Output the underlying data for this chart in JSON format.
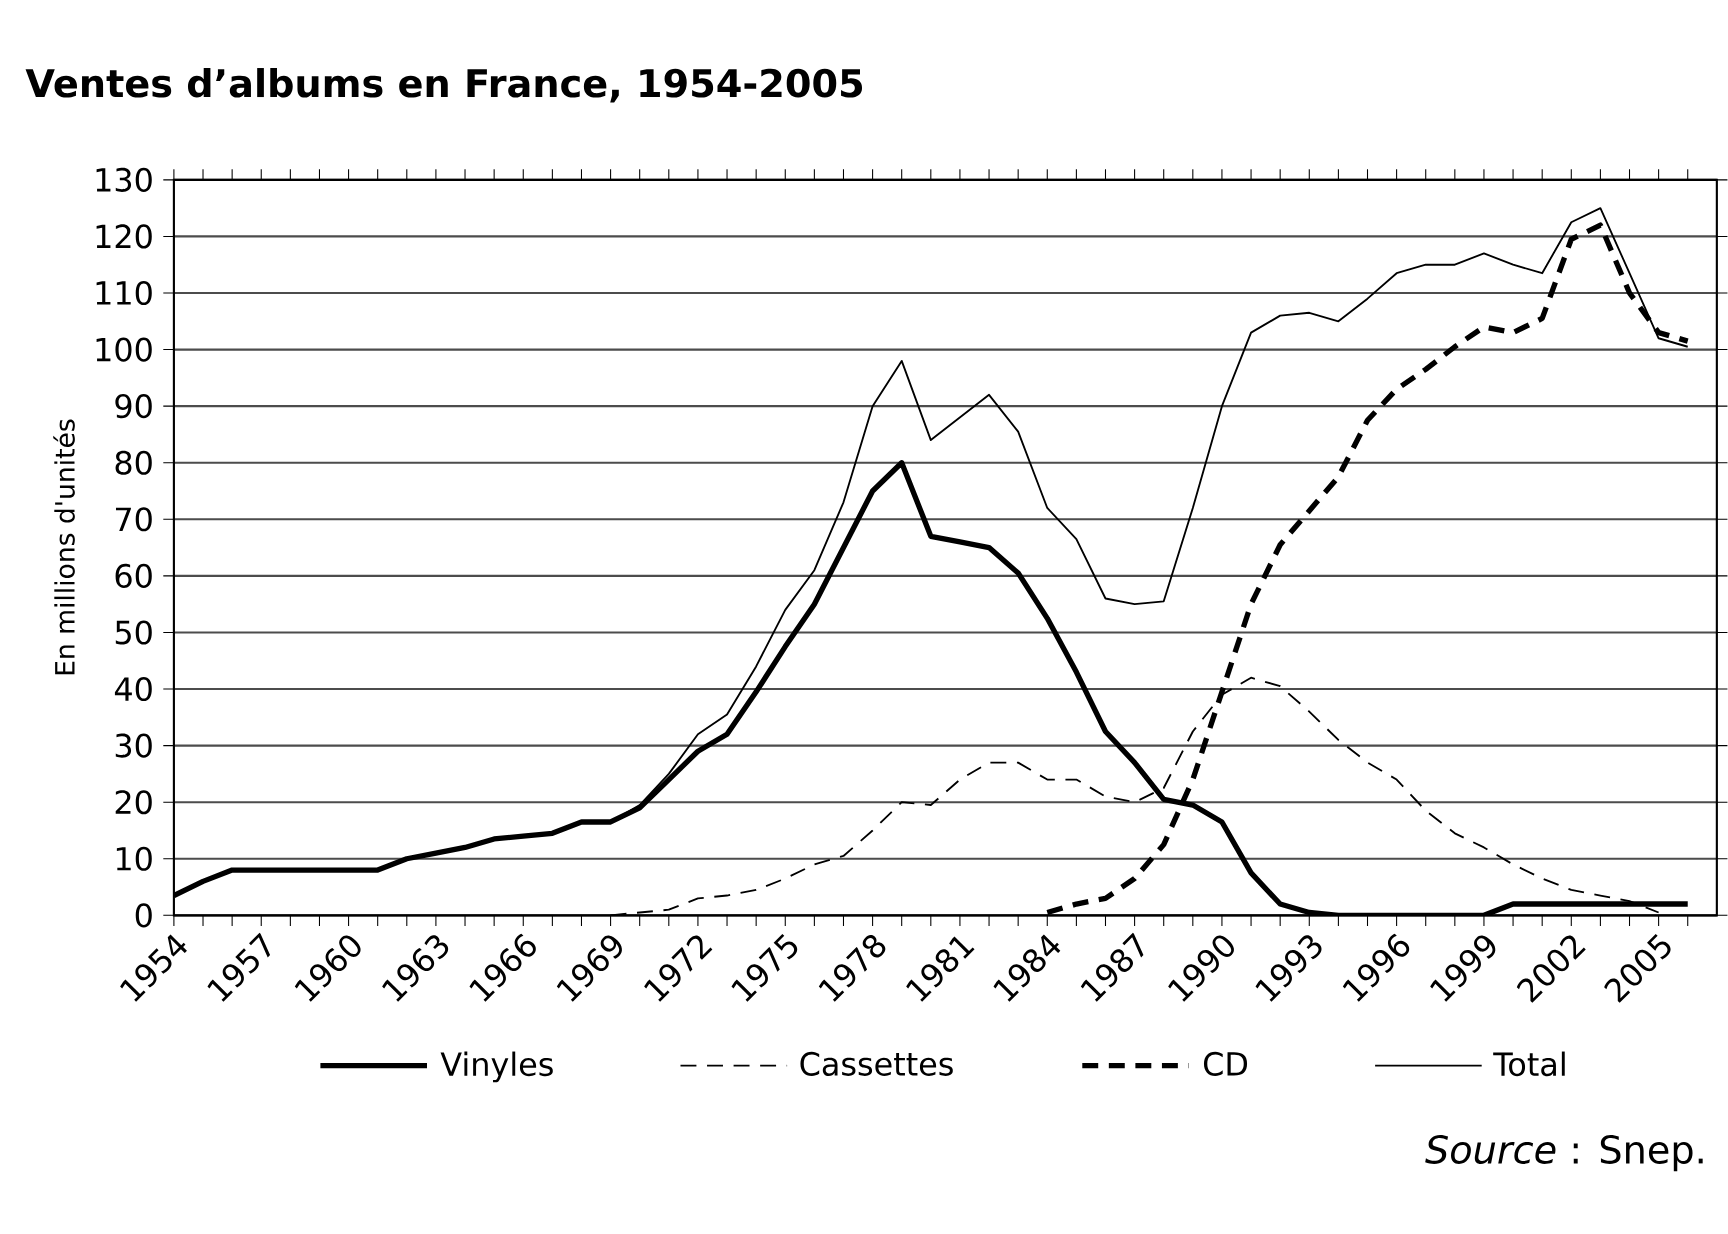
{
  "chart_data": {
    "type": "line",
    "title": "Ventes d’albums en France, 1954-2005",
    "ylabel": "En millions d'unités",
    "annotations": [
      "*Source* : Snep."
    ],
    "x": [
      1954,
      1955,
      1956,
      1957,
      1958,
      1959,
      1960,
      1961,
      1962,
      1963,
      1964,
      1965,
      1966,
      1967,
      1968,
      1969,
      1970,
      1971,
      1972,
      1973,
      1974,
      1975,
      1976,
      1977,
      1978,
      1979,
      1980,
      1981,
      1982,
      1983,
      1984,
      1985,
      1986,
      1987,
      1988,
      1989,
      1990,
      1991,
      1992,
      1993,
      1994,
      1995,
      1996,
      1997,
      1998,
      1999,
      2000,
      2001,
      2002,
      2003,
      2004,
      2005,
      2006
    ],
    "series": [
      {
        "name": "Vinyles",
        "color": "#000000",
        "line_style": "solid",
        "values": [
          3.5,
          6,
          8,
          8,
          8,
          8,
          8,
          8,
          10,
          11,
          12,
          13.5,
          14,
          14.5,
          16.5,
          16.5,
          19,
          24,
          29,
          32,
          39.5,
          47.5,
          55,
          65,
          75,
          80,
          67,
          66,
          65,
          60.5,
          52.5,
          43,
          32.5,
          27,
          20.5,
          19.5,
          16.5,
          7.5,
          2,
          0.5,
          0,
          0,
          0,
          0,
          0,
          0,
          2,
          2,
          2,
          2,
          2,
          2,
          2
        ]
      },
      {
        "name": "Cassettes",
        "color": "#000000",
        "line_style": "dashed",
        "values": [
          null,
          null,
          null,
          null,
          null,
          null,
          null,
          null,
          null,
          null,
          null,
          null,
          null,
          null,
          null,
          0,
          0.5,
          1,
          3,
          3.5,
          4.5,
          6.5,
          9,
          10.5,
          15,
          20,
          19.5,
          24,
          27,
          27,
          24,
          24,
          21,
          20,
          22.5,
          32.5,
          39,
          42,
          40.5,
          36,
          31,
          27,
          24,
          18.5,
          14.5,
          12,
          9,
          6.5,
          4.5,
          3.5,
          2.5,
          0.5,
          null
        ]
      },
      {
        "name": "CD",
        "color": "#000000",
        "line_style": "dashed",
        "values": [
          null,
          null,
          null,
          null,
          null,
          null,
          null,
          null,
          null,
          null,
          null,
          null,
          null,
          null,
          null,
          null,
          null,
          null,
          null,
          null,
          null,
          null,
          null,
          null,
          null,
          null,
          null,
          null,
          null,
          null,
          0.5,
          2,
          3,
          6.5,
          12.5,
          24,
          39.5,
          55,
          65.5,
          71.5,
          77.5,
          87.5,
          93,
          96.5,
          100.5,
          104,
          103,
          105.5,
          119.5,
          122,
          110,
          103,
          101.5
        ]
      },
      {
        "name": "Total",
        "color": "#000000",
        "line_style": "solid",
        "values": [
          3.5,
          6,
          8,
          8,
          8,
          8,
          8,
          8,
          10,
          11,
          12,
          13.5,
          14,
          14.5,
          16.5,
          16.5,
          19.5,
          25,
          32,
          35.5,
          44,
          54,
          61,
          73,
          90,
          98,
          84,
          88,
          92,
          85.5,
          72,
          66.5,
          56,
          55,
          55.5,
          72,
          90,
          103,
          106,
          106.5,
          105,
          109,
          113.5,
          115,
          115,
          117,
          115,
          113.5,
          122.5,
          125,
          113.5,
          102,
          100.5
        ]
      }
    ],
    "xlim": [
      1954,
      2007
    ],
    "xticks": [
      1954,
      {
        "value": 1955,
        "label": null
      },
      {
        "value": 1956,
        "label": null
      },
      1957,
      {
        "value": 1958,
        "label": null
      },
      {
        "value": 1959,
        "label": null
      },
      1960,
      {
        "value": 1961,
        "label": null
      },
      {
        "value": 1962,
        "label": null
      },
      1963,
      {
        "value": 1964,
        "label": null
      },
      {
        "value": 1965,
        "label": null
      },
      1966,
      {
        "value": 1967,
        "label": null
      },
      {
        "value": 1968,
        "label": null
      },
      1969,
      {
        "value": 1970,
        "label": null
      },
      {
        "value": 1971,
        "label": null
      },
      1972,
      {
        "value": 1973,
        "label": null
      },
      {
        "value": 1974,
        "label": null
      },
      1975,
      {
        "value": 1976,
        "label": null
      },
      {
        "value": 1977,
        "label": null
      },
      1978,
      {
        "value": 1979,
        "label": null
      },
      {
        "value": 1980,
        "label": null
      },
      1981,
      {
        "value": 1982,
        "label": null
      },
      {
        "value": 1983,
        "label": null
      },
      1984,
      {
        "value": 1985,
        "label": null
      },
      {
        "value": 1986,
        "label": null
      },
      1987,
      {
        "value": 1988,
        "label": null
      },
      {
        "value": 1989,
        "label": null
      },
      1990,
      {
        "value": 1991,
        "label": null
      },
      {
        "value": 1992,
        "label": null
      },
      1993,
      {
        "value": 1994,
        "label": null
      },
      {
        "value": 1995,
        "label": null
      },
      1996,
      {
        "value": 1997,
        "label": null
      },
      {
        "value": 1998,
        "label": null
      },
      1999,
      {
        "value": 2000,
        "label": null
      },
      {
        "value": 2001,
        "label": null
      },
      2002,
      {
        "value": 2003,
        "label": null
      },
      {
        "value": 2004,
        "label": null
      },
      2005,
      {
        "value": 2006,
        "label": null
      }
    ],
    "ylim": [
      0,
      130
    ],
    "yticks": [
      0,
      10,
      20,
      30,
      40,
      50,
      60,
      70,
      80,
      90,
      100,
      110,
      120,
      130
    ],
    "grid": "y",
    "legend": "bottom",
    "marker": "none"
  }
}
